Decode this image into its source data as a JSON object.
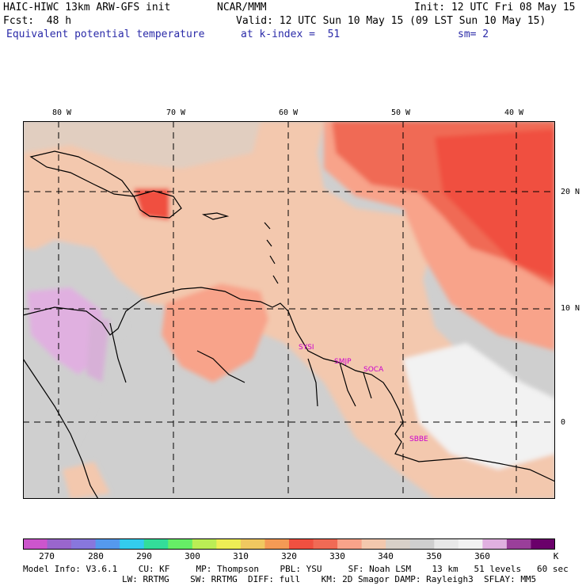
{
  "header": {
    "model": "HAIC-HIWC 13km ARW-GFS init",
    "org": "NCAR/MMM",
    "init": "Init: 12 UTC Fri 08 May 15",
    "fcst": "Fcst:  48 h",
    "valid": "Valid: 12 UTC Sun 10 May 15 (09 LST Sun 10 May 15)",
    "field": "Equivalent potential temperature",
    "level": "at k-index =  51",
    "smooth": "sm= 2"
  },
  "lon_labels": [
    "80 W",
    "70 W",
    "60 W",
    "50 W",
    "40 W"
  ],
  "lat_labels": [
    "20 N",
    "10 N",
    "0"
  ],
  "stations": [
    "SYSI",
    "SMJP",
    "SOCA",
    "SBBE"
  ],
  "colorbar": {
    "ticks": [
      "270",
      "280",
      "290",
      "300",
      "310",
      "320",
      "330",
      "340",
      "350",
      "360"
    ],
    "unit": "K",
    "colors": [
      "#cc55cc",
      "#9966cc",
      "#8877dd",
      "#5599ee",
      "#33ccee",
      "#33dd99",
      "#66ee66",
      "#bbee55",
      "#eeee55",
      "#f0c860",
      "#f49a55",
      "#f05040",
      "#f06a55",
      "#f8a38a",
      "#f3c8ae",
      "#d8d0c8",
      "#cfcfcf",
      "#e8e8e8",
      "#f2f2f2",
      "#e0b0e0",
      "#9a3f9a",
      "#6a006a"
    ]
  },
  "footer": {
    "line1": "Model Info: V3.6.1    CU: KF     MP: Thompson    PBL: YSU     SF: Noah LSM    13 km   51 levels   60 sec",
    "line2": "LW: RRTMG    SW: RRTMG  DIFF: full    KM: 2D Smagor DAMP: Rayleigh3  SFLAY: MM5"
  }
}
